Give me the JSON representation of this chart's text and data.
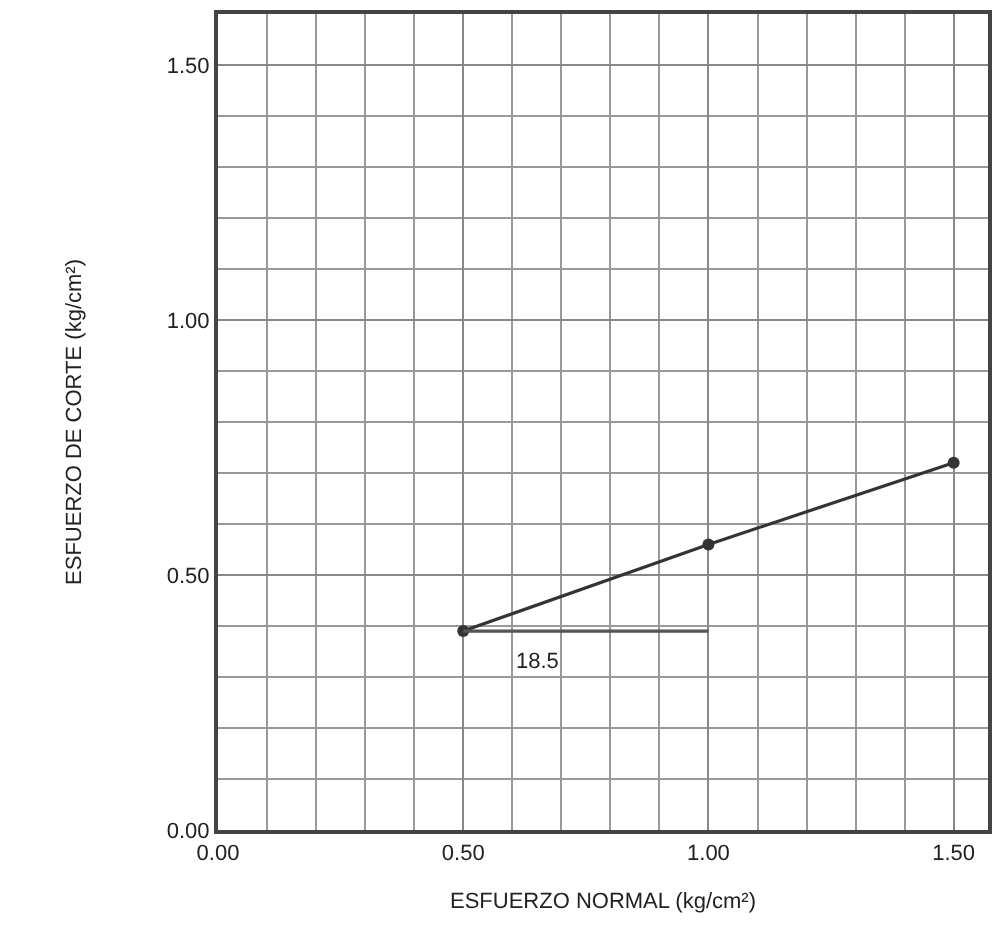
{
  "chart_data": {
    "type": "line",
    "xlabel": "ESFUERZO NORMAL (kg/cm²)",
    "ylabel": "ESFUERZO DE CORTE (kg/cm²)",
    "x": [
      0.5,
      1.0,
      1.5
    ],
    "series": [
      {
        "color": "#333333",
        "values": [
          0.39,
          0.56,
          0.72
        ],
        "marker": "circle"
      },
      {
        "color": "#555555",
        "x": [
          0.5,
          1.0
        ],
        "values": [
          0.39,
          0.39
        ],
        "marker": "none"
      }
    ],
    "annotations": [
      "18.5"
    ],
    "xlim": [
      0,
      1.57
    ],
    "ylim": [
      0,
      1.6
    ],
    "xticks": [
      {
        "value": 0,
        "label": "0.00"
      },
      {
        "value": 0.5,
        "label": "0.50"
      },
      {
        "value": 1,
        "label": "1.00"
      },
      {
        "value": 1.5,
        "label": "1.50"
      }
    ],
    "yticks": [
      {
        "value": 0,
        "label": "0.00"
      },
      {
        "value": 0.5,
        "label": "0.50"
      },
      {
        "value": 1,
        "label": "1.00"
      },
      {
        "value": 1.5,
        "label": "1.50"
      }
    ],
    "grid": true,
    "line_style": "solid"
  }
}
